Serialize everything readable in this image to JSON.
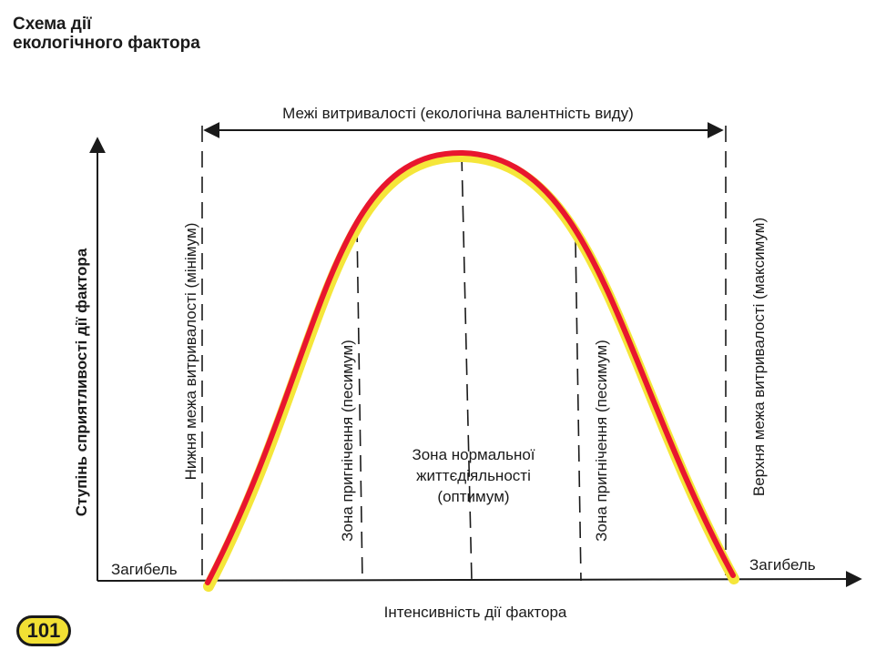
{
  "title": {
    "line1": "Схема дії",
    "line2": "екологічного фактора"
  },
  "tolerance_range_label": "Межі витривалості (екологічна валентність виду)",
  "axes": {
    "x_label": "Інтенсивність дії фактора",
    "y_label": "Ступінь сприятливості дії фактора"
  },
  "labels": {
    "death_left": "Загибель",
    "death_right": "Загибель",
    "lower_limit": "Нижня межа витривалості (мінімум)",
    "upper_limit": "Верхня межа витривалості (максимум)",
    "pessimum_left": "Зона пригнічення (песимум)",
    "pessimum_right": "Зона пригнічення (песимум)",
    "optimum_line1": "Зона нормальної",
    "optimum_line2": "життєдіяльності",
    "optimum_line3": "(оптимум)"
  },
  "colors": {
    "curve_stroke": "#e8162e",
    "curve_glow": "#f5e63a",
    "badge_fill": "#f2e034"
  },
  "page_number": "101"
}
